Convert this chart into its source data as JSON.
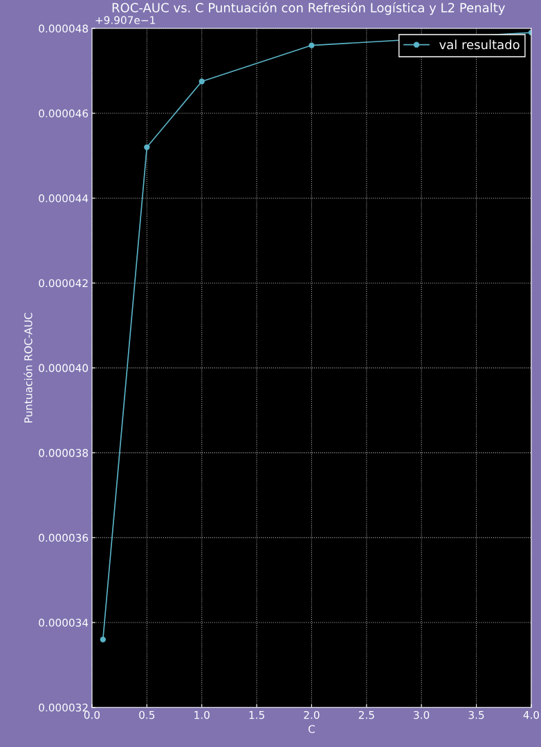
{
  "chart_data": {
    "type": "line",
    "title": "ROC-AUC vs. C Puntuación con Refresión Logística y L2 Penalty",
    "xlabel": "C",
    "ylabel": "Puntuación ROC-AUC",
    "x": [
      0.1,
      0.5,
      1.0,
      2.0,
      4.0
    ],
    "series": [
      {
        "name": "val resultado",
        "color": "#5ab4c8",
        "values": [
          3.36e-05,
          4.52e-05,
          4.675e-05,
          4.76e-05,
          4.79e-05
        ]
      }
    ],
    "xlim": [
      0.0,
      4.0
    ],
    "xticks": [
      {
        "value": 0.0,
        "label": "0.0"
      },
      {
        "value": 0.5,
        "label": "0.5"
      },
      {
        "value": 1.0,
        "label": "1.0"
      },
      {
        "value": 1.5,
        "label": "1.5"
      },
      {
        "value": 2.0,
        "label": "2.0"
      },
      {
        "value": 2.5,
        "label": "2.5"
      },
      {
        "value": 3.0,
        "label": "3.0"
      },
      {
        "value": 3.5,
        "label": "3.5"
      },
      {
        "value": 4.0,
        "label": "4.0"
      }
    ],
    "ylim": [
      3.2e-05,
      4.8e-05
    ],
    "yticks": [
      {
        "value": 3.2e-05,
        "label": "0.000032"
      },
      {
        "value": 3.4e-05,
        "label": "0.000034"
      },
      {
        "value": 3.6e-05,
        "label": "0.000036"
      },
      {
        "value": 3.8e-05,
        "label": "0.000038"
      },
      {
        "value": 4e-05,
        "label": "0.000040"
      },
      {
        "value": 4.2e-05,
        "label": "0.000042"
      },
      {
        "value": 4.4e-05,
        "label": "0.000044"
      },
      {
        "value": 4.6e-05,
        "label": "0.000046"
      },
      {
        "value": 4.8e-05,
        "label": "0.000048"
      }
    ],
    "annotations": [
      "+9.907e−1"
    ],
    "grid": true,
    "legend": "top right",
    "marker": "circle",
    "line_style": "solid"
  }
}
